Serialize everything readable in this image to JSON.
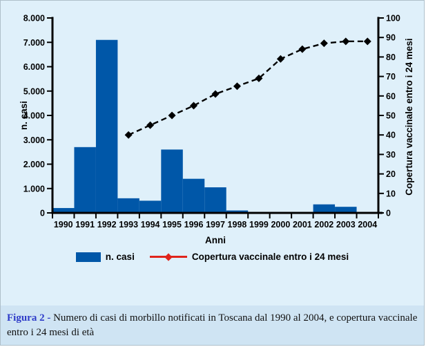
{
  "colors": {
    "panel_bg": "#dff0fa",
    "caption_bg": "#cfe4f3",
    "bar": "#0057a8",
    "line": "#000000",
    "legend_line": "#e0241b",
    "caption_accent": "#2e3bc8",
    "axis": "#000000",
    "border": "#aebfca"
  },
  "figure": {
    "caption_prefix": "Figura 2",
    "caption_separator": " - ",
    "caption_body": "Numero di casi di morbillo notificati in Toscana dal 1990 al 2004, e copertura vaccinale entro i 24 mesi di età"
  },
  "chart_data": {
    "type": "bar+line",
    "title": "",
    "xlabel": "Anni",
    "grid": false,
    "legend_position": "bottom",
    "categories": [
      "1990",
      "1991",
      "1992",
      "1993",
      "1994",
      "1995",
      "1996",
      "1997",
      "1998",
      "1999",
      "2000",
      "2001",
      "2002",
      "2003",
      "2004"
    ],
    "series": [
      {
        "name": "n. casi",
        "type": "bar",
        "axis": "left",
        "color": "#0057a8",
        "values": [
          200,
          2700,
          7100,
          600,
          500,
          2600,
          1400,
          1050,
          100,
          0,
          0,
          0,
          350,
          250,
          0
        ]
      },
      {
        "name": "Copertura vaccinale entro i 24 mesi",
        "type": "line",
        "axis": "right",
        "color": "#000000",
        "style": "dashed",
        "marker": "diamond",
        "values": [
          null,
          null,
          null,
          40,
          45,
          50,
          55,
          61,
          65,
          69,
          79,
          84,
          87,
          88,
          88
        ]
      }
    ],
    "left_axis": {
      "label": "n. casi",
      "min": 0,
      "max": 8000,
      "step": 1000,
      "tick_labels": [
        "0",
        "1.000",
        "2.000",
        "3.000",
        "4.000",
        "5.000",
        "6.000",
        "7.000",
        "8.000"
      ]
    },
    "right_axis": {
      "label": "Copertura vaccinale entro i 24 mesi",
      "min": 0,
      "max": 100,
      "step": 10,
      "tick_labels": [
        "0",
        "10",
        "20",
        "30",
        "40",
        "50",
        "60",
        "70",
        "80",
        "90",
        "100"
      ]
    },
    "legend": [
      {
        "label": "n. casi",
        "marker": "bar"
      },
      {
        "label": "Copertura vaccinale entro i 24 mesi",
        "marker": "line-diamond"
      }
    ]
  }
}
